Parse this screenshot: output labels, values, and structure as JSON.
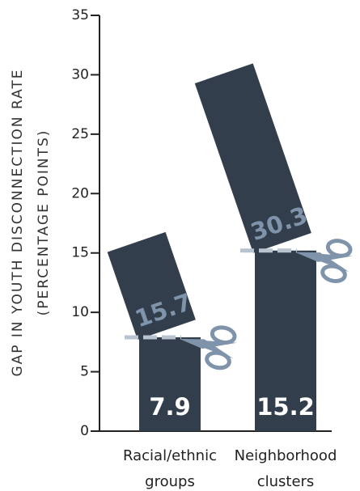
{
  "chart_data": {
    "type": "cut-bar",
    "ylabel": "GAP IN YOUTH DISCONNECTION RATE",
    "ylabel_unit": "(PERCENTAGE POINTS)",
    "categories": [
      "Racial/ethnic groups",
      "Neighborhood clusters"
    ],
    "values": [
      7.9,
      15.2
    ],
    "original_values": [
      15.7,
      30.3
    ],
    "color": "#323e4b",
    "cut_label_color": "#7f94ab",
    "ylim": [
      0,
      35
    ],
    "yticks": [
      0,
      5,
      10,
      15,
      20,
      25,
      30,
      35
    ]
  }
}
